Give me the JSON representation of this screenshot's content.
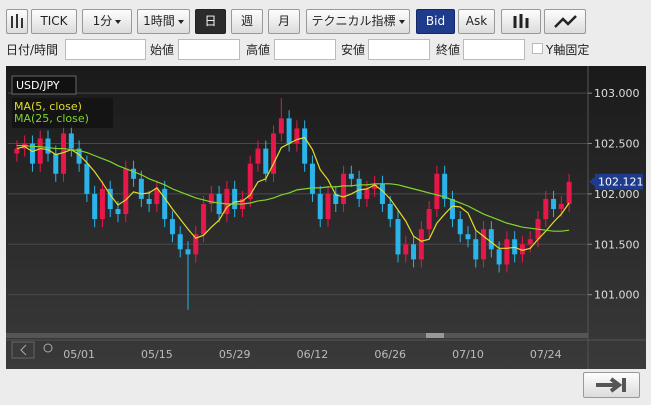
{
  "toolbar": {
    "tick": "TICK",
    "minute": "1分",
    "hour": "1時間",
    "day": "日",
    "week": "週",
    "month": "月",
    "technical": "テクニカル指標",
    "bid": "Bid",
    "ask": "Ask"
  },
  "fields": {
    "datetime": "日付/時間",
    "open": "始値",
    "high": "高値",
    "low": "安値",
    "close": "終値",
    "y_fixed": "Y軸固定"
  },
  "chart_data": {
    "type": "candlestick",
    "title": "USD/JPY",
    "categories": [
      null,
      null,
      null,
      null,
      null,
      null,
      null,
      null,
      "05/01",
      null,
      null,
      null,
      null,
      null,
      null,
      null,
      null,
      null,
      "05/15",
      null,
      null,
      null,
      null,
      null,
      null,
      null,
      null,
      null,
      "05/29",
      null,
      null,
      null,
      null,
      null,
      null,
      null,
      null,
      null,
      "06/12",
      null,
      null,
      null,
      null,
      null,
      null,
      null,
      null,
      null,
      "06/26",
      null,
      null,
      null,
      null,
      null,
      null,
      null,
      null,
      null,
      "07/10",
      null,
      null,
      null,
      null,
      null,
      null,
      null,
      null,
      null,
      "07/24",
      null,
      null,
      null
    ],
    "open": [
      102.4,
      102.45,
      102.5,
      102.3,
      102.55,
      102.4,
      102.2,
      102.6,
      102.45,
      102.3,
      102.0,
      101.75,
      102.05,
      101.85,
      101.8,
      102.25,
      102.15,
      101.95,
      101.9,
      102.05,
      101.75,
      101.6,
      101.45,
      101.4,
      101.6,
      101.9,
      102.0,
      101.8,
      102.05,
      101.85,
      101.95,
      102.3,
      102.45,
      102.2,
      102.6,
      102.75,
      102.5,
      102.65,
      102.3,
      102.0,
      101.75,
      102.0,
      101.9,
      102.2,
      102.15,
      101.95,
      102.05,
      102.1,
      101.9,
      101.75,
      101.4,
      101.5,
      101.35,
      101.65,
      101.85,
      102.2,
      101.95,
      101.75,
      101.6,
      101.55,
      101.35,
      101.65,
      101.45,
      101.3,
      101.55,
      101.4,
      101.5,
      101.55,
      101.75,
      101.95,
      101.85,
      101.9
    ],
    "high": [
      102.53,
      102.58,
      102.58,
      102.63,
      102.63,
      102.48,
      102.68,
      102.68,
      102.53,
      102.38,
      102.08,
      102.13,
      102.13,
      101.93,
      102.33,
      102.33,
      102.23,
      102.03,
      102.13,
      102.13,
      101.83,
      101.68,
      101.53,
      101.68,
      101.98,
      102.08,
      102.08,
      102.13,
      102.13,
      102.03,
      102.38,
      102.53,
      102.53,
      102.68,
      102.95,
      102.83,
      102.73,
      102.73,
      102.38,
      102.08,
      102.08,
      102.08,
      102.28,
      102.28,
      102.23,
      102.13,
      102.18,
      102.18,
      101.98,
      101.83,
      101.58,
      101.58,
      101.73,
      101.93,
      102.28,
      102.28,
      102.03,
      101.83,
      101.68,
      101.63,
      101.73,
      101.73,
      101.53,
      101.63,
      101.63,
      101.58,
      101.63,
      101.83,
      102.03,
      102.03,
      101.98,
      102.2
    ],
    "low": [
      102.32,
      102.37,
      102.22,
      102.22,
      102.32,
      102.12,
      102.12,
      102.37,
      102.22,
      101.92,
      101.67,
      101.67,
      101.77,
      101.72,
      101.72,
      102.07,
      101.87,
      101.82,
      101.82,
      101.67,
      101.52,
      101.37,
      100.85,
      101.32,
      101.52,
      101.82,
      101.72,
      101.72,
      101.77,
      101.77,
      101.87,
      102.22,
      102.12,
      102.12,
      102.52,
      102.42,
      102.42,
      102.22,
      101.92,
      101.67,
      101.67,
      101.82,
      101.82,
      102.07,
      101.87,
      101.87,
      101.97,
      101.82,
      101.67,
      101.32,
      101.32,
      101.27,
      101.27,
      101.57,
      101.77,
      101.87,
      101.67,
      101.52,
      101.47,
      101.27,
      101.27,
      101.37,
      101.22,
      101.22,
      101.32,
      101.32,
      101.42,
      101.47,
      101.67,
      101.77,
      101.77,
      101.82
    ],
    "close": [
      102.45,
      102.5,
      102.3,
      102.55,
      102.4,
      102.2,
      102.6,
      102.45,
      102.3,
      102.0,
      101.75,
      102.05,
      101.85,
      101.8,
      102.25,
      102.15,
      101.95,
      101.9,
      102.05,
      101.75,
      101.6,
      101.45,
      101.4,
      101.6,
      101.9,
      102.0,
      101.8,
      102.05,
      101.85,
      101.95,
      102.3,
      102.45,
      102.2,
      102.6,
      102.75,
      102.5,
      102.65,
      102.3,
      102.0,
      101.75,
      102.0,
      101.9,
      102.2,
      102.15,
      101.95,
      102.05,
      102.1,
      101.9,
      101.75,
      101.4,
      101.5,
      101.35,
      101.65,
      101.85,
      102.2,
      101.95,
      101.75,
      101.6,
      101.55,
      101.35,
      101.65,
      101.45,
      101.3,
      101.55,
      101.4,
      101.5,
      101.55,
      101.75,
      101.95,
      101.85,
      101.9,
      102.12
    ],
    "up_color": "#e8174a",
    "down_color": "#2ab4ea",
    "series": [
      {
        "name": "MA(5, close)",
        "color": "#e2dc2a",
        "values": [
          102.45,
          102.47,
          102.42,
          102.45,
          102.44,
          102.39,
          102.41,
          102.44,
          102.39,
          102.31,
          102.22,
          102.11,
          101.99,
          101.89,
          101.94,
          102.02,
          102.0,
          102.01,
          102.06,
          101.96,
          101.85,
          101.75,
          101.65,
          101.56,
          101.59,
          101.67,
          101.74,
          101.87,
          101.92,
          101.93,
          101.99,
          102.12,
          102.15,
          102.3,
          102.46,
          102.5,
          102.54,
          102.56,
          102.44,
          102.24,
          102.14,
          101.99,
          101.97,
          102.0,
          102.04,
          102.05,
          102.09,
          102.03,
          101.95,
          101.84,
          101.73,
          101.58,
          101.53,
          101.55,
          101.71,
          101.8,
          101.88,
          101.87,
          101.81,
          101.64,
          101.58,
          101.52,
          101.46,
          101.46,
          101.47,
          101.44,
          101.46,
          101.55,
          101.63,
          101.72,
          101.8,
          101.91
        ]
      },
      {
        "name": "MA(25, close)",
        "color": "#7fd62c",
        "values": [
          102.48,
          102.48,
          102.47,
          102.47,
          102.46,
          102.45,
          102.45,
          102.44,
          102.43,
          102.41,
          102.38,
          102.35,
          102.32,
          102.28,
          102.25,
          102.22,
          102.19,
          102.15,
          102.12,
          102.09,
          102.05,
          102.02,
          101.99,
          101.96,
          101.94,
          101.92,
          101.91,
          101.9,
          101.9,
          101.9,
          101.91,
          101.93,
          101.94,
          101.96,
          101.99,
          102.01,
          102.04,
          102.05,
          102.06,
          102.06,
          102.07,
          102.07,
          102.08,
          102.08,
          102.09,
          102.09,
          102.1,
          102.1,
          102.1,
          102.09,
          102.07,
          102.05,
          102.03,
          102.01,
          101.99,
          101.97,
          101.94,
          101.91,
          101.88,
          101.84,
          101.8,
          101.77,
          101.74,
          101.71,
          101.69,
          101.67,
          101.66,
          101.65,
          101.64,
          101.63,
          101.63,
          101.64
        ]
      }
    ],
    "last_price": 102.121,
    "last_price_color": "#1e3b8c",
    "ylim": [
      100.55,
      103.21
    ],
    "yticks": [
      {
        "value": 101,
        "label": "101.000"
      },
      {
        "value": 101.5,
        "label": "101.500"
      },
      {
        "value": 102,
        "label": "102.000"
      },
      {
        "value": 102.5,
        "label": "102.500"
      },
      {
        "value": 103,
        "label": "103.000"
      }
    ],
    "grid": true
  }
}
